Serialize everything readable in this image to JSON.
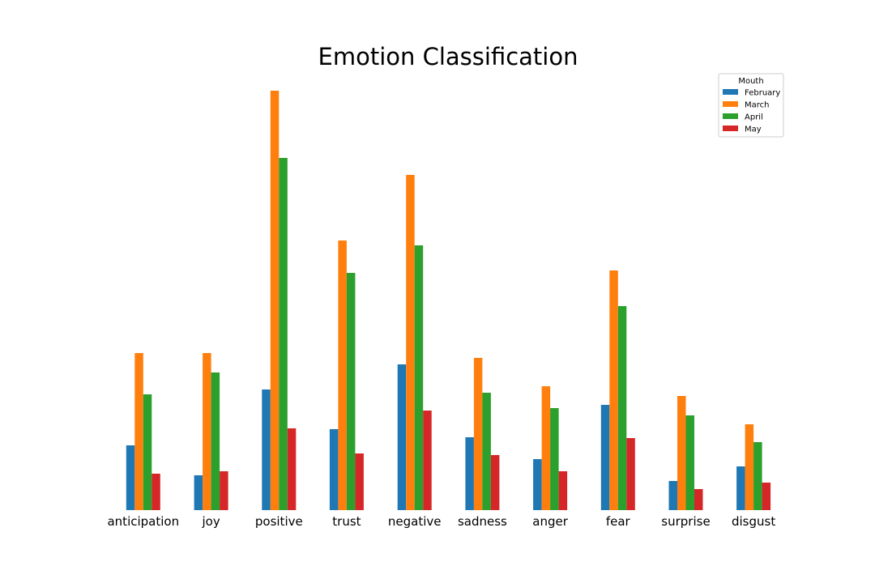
{
  "chart_data": {
    "type": "bar",
    "title": "Emotion Classification",
    "xlabel": "",
    "ylabel": "",
    "categories": [
      "anticipation",
      "joy",
      "positive",
      "trust",
      "negative",
      "sadness",
      "anger",
      "fear",
      "surprise",
      "disgust"
    ],
    "series": [
      {
        "name": "February",
        "color": "#1f77b4",
        "values": [
          80,
          43,
          149,
          100,
          180,
          90,
          63,
          130,
          36,
          54
        ]
      },
      {
        "name": "March",
        "color": "#ff7f0e",
        "values": [
          194,
          194,
          518,
          333,
          414,
          188,
          153,
          296,
          141,
          106
        ]
      },
      {
        "name": "April",
        "color": "#2ca02c",
        "values": [
          143,
          170,
          435,
          293,
          327,
          145,
          126,
          252,
          117,
          84
        ]
      },
      {
        "name": "May",
        "color": "#d62728",
        "values": [
          45,
          48,
          101,
          70,
          123,
          68,
          48,
          89,
          26,
          34
        ]
      }
    ],
    "ylim": [
      0,
      540
    ],
    "y_axis_visible": false,
    "grid": false,
    "legend": {
      "title": "Mouth",
      "placement": "top-right"
    }
  }
}
